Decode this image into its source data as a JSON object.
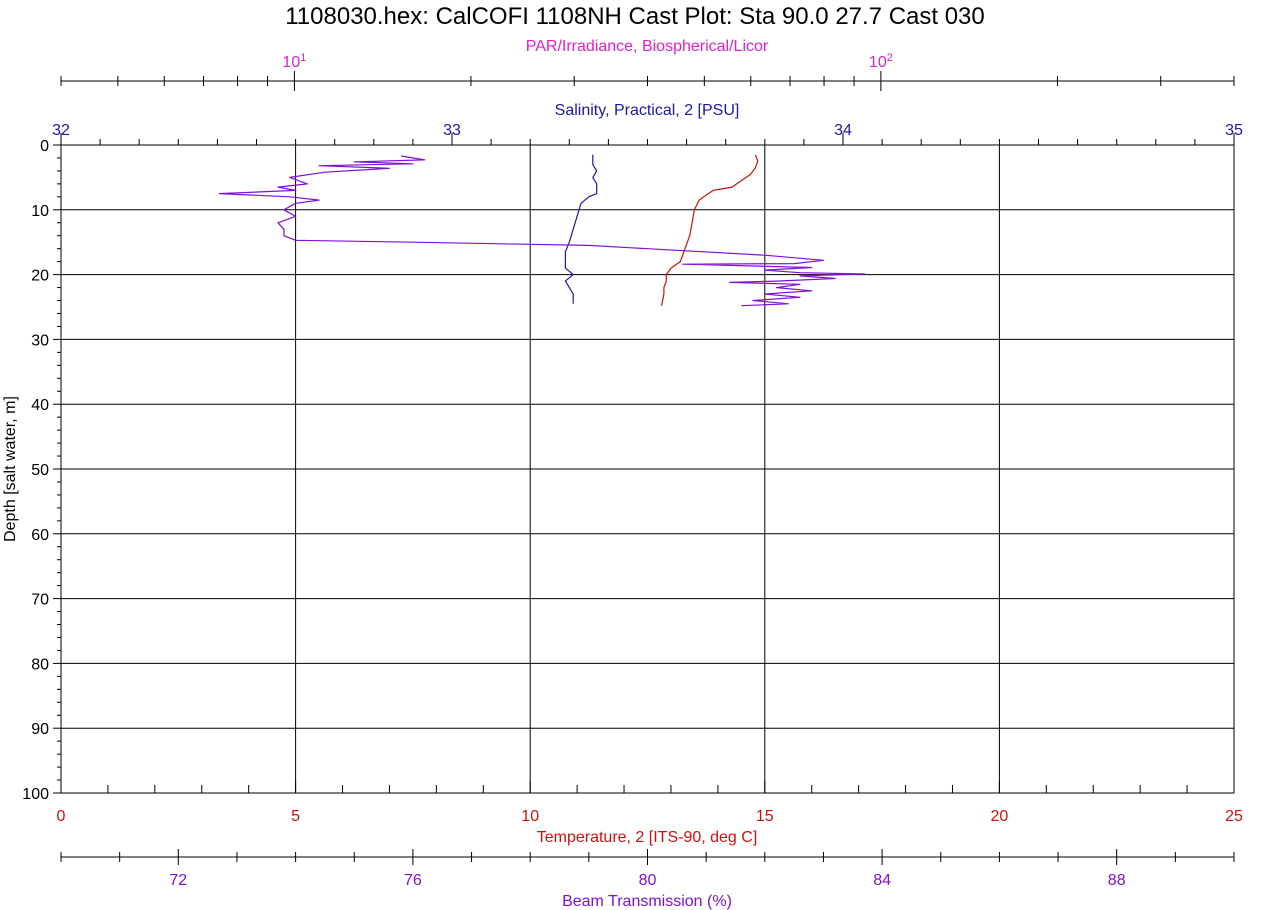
{
  "chart_data": {
    "type": "line",
    "title": "1108030.hex: CalCOFI 1108NH Cast Plot: Sta 90.0 27.7 Cast 030",
    "y_axis": {
      "label": "Depth [salt water, m]",
      "range": [
        0,
        100
      ],
      "inverted": true,
      "ticks": [
        "0",
        "10",
        "20",
        "30",
        "40",
        "50",
        "60",
        "70",
        "80",
        "90",
        "100"
      ],
      "grid": true
    },
    "axes": {
      "par": {
        "label": "PAR/Irradiance, Biospherical/Licor",
        "scale": "log",
        "range": [
          4,
          400
        ],
        "color": "#e020d0",
        "ticks": [
          {
            "value": 10,
            "base": "10",
            "exp": "1"
          },
          {
            "value": 100,
            "base": "10",
            "exp": "2"
          }
        ]
      },
      "salinity": {
        "label": "Salinity, Practical, 2 [PSU]",
        "range": [
          32,
          35
        ],
        "color": "#1a1aa8",
        "ticks": [
          "32",
          "33",
          "34",
          "35"
        ]
      },
      "temperature": {
        "label": "Temperature, 2 [ITS-90, deg C]",
        "range": [
          0,
          25
        ],
        "color": "#d01010",
        "ticks": [
          "0",
          "5",
          "10",
          "15",
          "20",
          "25"
        ],
        "grid": true
      },
      "beam": {
        "label": "Beam Transmission (%)",
        "range": [
          70,
          90
        ],
        "color": "#8010d8",
        "ticks": [
          "72",
          "76",
          "80",
          "84",
          "88"
        ]
      }
    },
    "series": [
      {
        "axis": "salinity",
        "color": "#1a1aa8",
        "points": [
          [
            33.36,
            1.5
          ],
          [
            33.36,
            3
          ],
          [
            33.37,
            4
          ],
          [
            33.36,
            5
          ],
          [
            33.37,
            6
          ],
          [
            33.37,
            7.5
          ],
          [
            33.35,
            8
          ],
          [
            33.33,
            9
          ],
          [
            33.32,
            11
          ],
          [
            33.31,
            13
          ],
          [
            33.3,
            15
          ],
          [
            33.29,
            16.5
          ],
          [
            33.29,
            18
          ],
          [
            33.29,
            19
          ],
          [
            33.31,
            20
          ],
          [
            33.29,
            21
          ],
          [
            33.3,
            22
          ],
          [
            33.31,
            23
          ],
          [
            33.31,
            24.5
          ]
        ]
      },
      {
        "axis": "temperature",
        "color": "#d01010",
        "points": [
          [
            14.8,
            1.5
          ],
          [
            14.85,
            2.5
          ],
          [
            14.8,
            3.5
          ],
          [
            14.7,
            4.5
          ],
          [
            14.5,
            5.5
          ],
          [
            14.3,
            6.5
          ],
          [
            13.9,
            7
          ],
          [
            13.7,
            8
          ],
          [
            13.6,
            8.5
          ],
          [
            13.5,
            10
          ],
          [
            13.45,
            12
          ],
          [
            13.4,
            14
          ],
          [
            13.3,
            16
          ],
          [
            13.2,
            18
          ],
          [
            13.0,
            19
          ],
          [
            12.9,
            20
          ],
          [
            12.9,
            21
          ],
          [
            12.85,
            22
          ],
          [
            12.85,
            23
          ],
          [
            12.8,
            24.8
          ]
        ]
      },
      {
        "axis": "beam",
        "color": "#8010d8",
        "points": [
          [
            75.8,
            1.7
          ],
          [
            76.2,
            2.3
          ],
          [
            75.0,
            2.6
          ],
          [
            76.0,
            2.9
          ],
          [
            74.4,
            3.2
          ],
          [
            75.6,
            3.6
          ],
          [
            74.5,
            4.2
          ],
          [
            73.9,
            5
          ],
          [
            74.2,
            6
          ],
          [
            73.7,
            6.5
          ],
          [
            74.0,
            7
          ],
          [
            72.7,
            7.5
          ],
          [
            73.9,
            8
          ],
          [
            74.4,
            8.5
          ],
          [
            74.0,
            9
          ],
          [
            73.8,
            10
          ],
          [
            74.0,
            11
          ],
          [
            73.7,
            12
          ],
          [
            73.8,
            13
          ],
          [
            73.8,
            14
          ],
          [
            74.0,
            14.7
          ],
          [
            76.0,
            15
          ],
          [
            79.0,
            15.5
          ],
          [
            80.0,
            16
          ],
          [
            82.0,
            17
          ],
          [
            83.0,
            17.8
          ],
          [
            82.5,
            18.3
          ],
          [
            80.6,
            18.4
          ],
          [
            82.8,
            18.9
          ],
          [
            82.0,
            19.3
          ],
          [
            82.6,
            19.7
          ],
          [
            83.7,
            19.9
          ],
          [
            82.6,
            20.2
          ],
          [
            83.2,
            20.6
          ],
          [
            82.2,
            21
          ],
          [
            81.4,
            21.2
          ],
          [
            82.6,
            21.5
          ],
          [
            82.2,
            22
          ],
          [
            82.8,
            22.5
          ],
          [
            82.0,
            23
          ],
          [
            82.6,
            23.5
          ],
          [
            81.8,
            24
          ],
          [
            82.4,
            24.5
          ],
          [
            81.6,
            24.8
          ]
        ]
      }
    ]
  }
}
